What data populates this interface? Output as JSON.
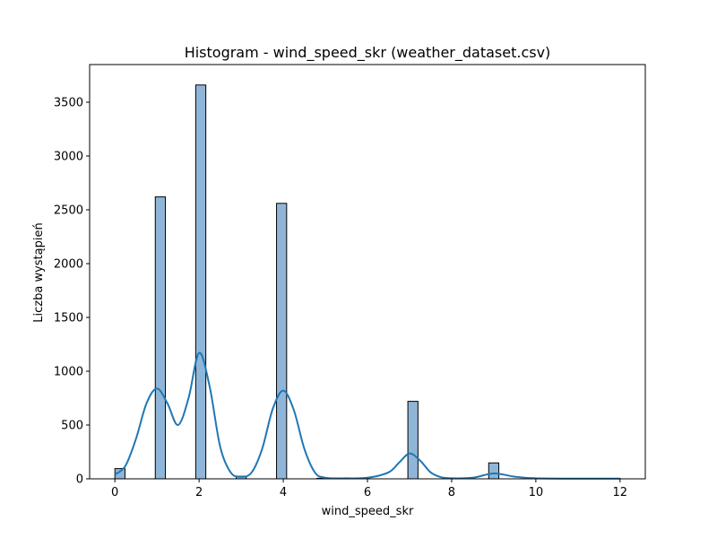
{
  "chart_data": {
    "type": "bar",
    "title": "Histogram - wind_speed_skr (weather_dataset.csv)",
    "xlabel": "wind_speed_skr",
    "ylabel": "Liczba wystąpień",
    "xlim": [
      -0.6,
      12.6
    ],
    "ylim": [
      0,
      3850
    ],
    "x_ticks": [
      0,
      2,
      4,
      6,
      8,
      10,
      12
    ],
    "y_ticks": [
      0,
      500,
      1000,
      1500,
      2000,
      2500,
      3000,
      3500
    ],
    "bin_width": 0.24,
    "bins": [
      {
        "x": 0.0,
        "value": 95
      },
      {
        "x": 0.96,
        "value": 2620
      },
      {
        "x": 1.92,
        "value": 3660
      },
      {
        "x": 2.88,
        "value": 25
      },
      {
        "x": 3.84,
        "value": 2560
      },
      {
        "x": 4.8,
        "value": 5
      },
      {
        "x": 6.96,
        "value": 720
      },
      {
        "x": 8.88,
        "value": 148
      },
      {
        "x": 11.76,
        "value": 3
      }
    ],
    "kde": {
      "x": [
        0,
        0.25,
        0.5,
        0.75,
        1.0,
        1.25,
        1.5,
        1.75,
        2.0,
        2.25,
        2.5,
        2.75,
        3.0,
        3.25,
        3.5,
        3.75,
        4.0,
        4.25,
        4.5,
        4.75,
        5.0,
        5.5,
        6.0,
        6.5,
        6.75,
        7.0,
        7.25,
        7.5,
        7.75,
        8.0,
        8.5,
        9.0,
        9.5,
        10.0,
        11.0,
        12.0
      ],
      "y": [
        40,
        120,
        370,
        700,
        840,
        700,
        500,
        750,
        1170,
        860,
        300,
        60,
        20,
        60,
        280,
        650,
        820,
        640,
        280,
        60,
        10,
        5,
        10,
        60,
        150,
        235,
        170,
        60,
        15,
        5,
        10,
        50,
        20,
        5,
        2,
        2
      ]
    },
    "bar_color": "#8fb6d8",
    "bar_edge_color": "#000000",
    "line_color": "#1f77b4",
    "grid": false,
    "legend": "none"
  }
}
